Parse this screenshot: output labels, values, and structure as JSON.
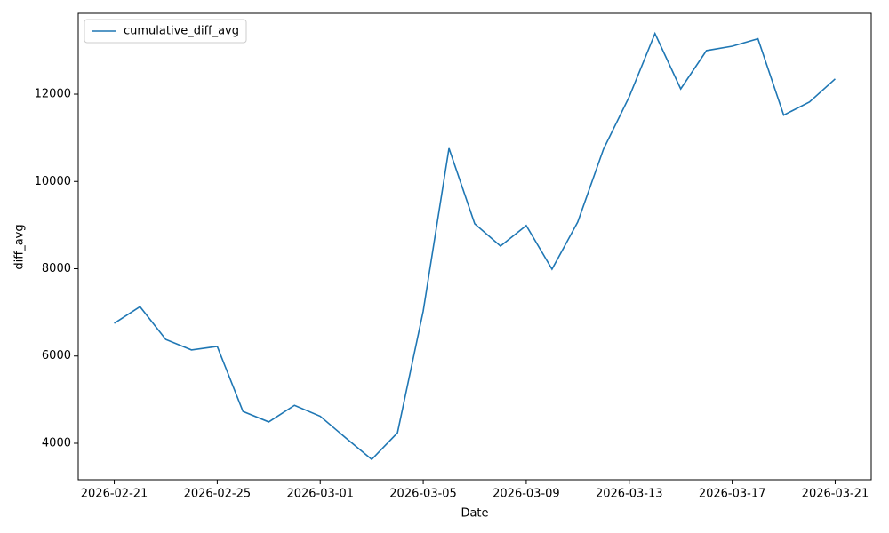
{
  "chart_data": {
    "type": "line",
    "x": [
      "2026-02-21",
      "2026-02-22",
      "2026-02-23",
      "2026-02-24",
      "2026-02-25",
      "2026-02-26",
      "2026-02-27",
      "2026-02-28",
      "2026-03-01",
      "2026-03-02",
      "2026-03-03",
      "2026-03-04",
      "2026-03-05",
      "2026-03-06",
      "2026-03-07",
      "2026-03-08",
      "2026-03-09",
      "2026-03-10",
      "2026-03-11",
      "2026-03-12",
      "2026-03-13",
      "2026-03-14",
      "2026-03-15",
      "2026-03-16",
      "2026-03-17",
      "2026-03-18",
      "2026-03-19",
      "2026-03-20",
      "2026-03-21"
    ],
    "series": [
      {
        "name": "cumulative_diff_avg",
        "color": "#1f77b4",
        "values": [
          6750,
          7130,
          6380,
          6140,
          6220,
          4730,
          4490,
          4870,
          4620,
          4120,
          3630,
          4240,
          7030,
          10760,
          9030,
          8520,
          8990,
          7990,
          9070,
          10740,
          11940,
          13390,
          12120,
          13000,
          13100,
          13270,
          11520,
          11820,
          12350
        ]
      }
    ],
    "xlabel": "Date",
    "ylabel": "diff_avg",
    "xlim": [
      "2026-02-19T14:24",
      "2026-03-22T09:36"
    ],
    "xticks": [
      "2026-02-21",
      "2026-02-25",
      "2026-03-01",
      "2026-03-05",
      "2026-03-09",
      "2026-03-13",
      "2026-03-17",
      "2026-03-21"
    ],
    "ylim": [
      3165,
      13853
    ],
    "yticks": [
      4000,
      6000,
      8000,
      10000,
      12000
    ],
    "grid": false,
    "legend": "upper left"
  }
}
